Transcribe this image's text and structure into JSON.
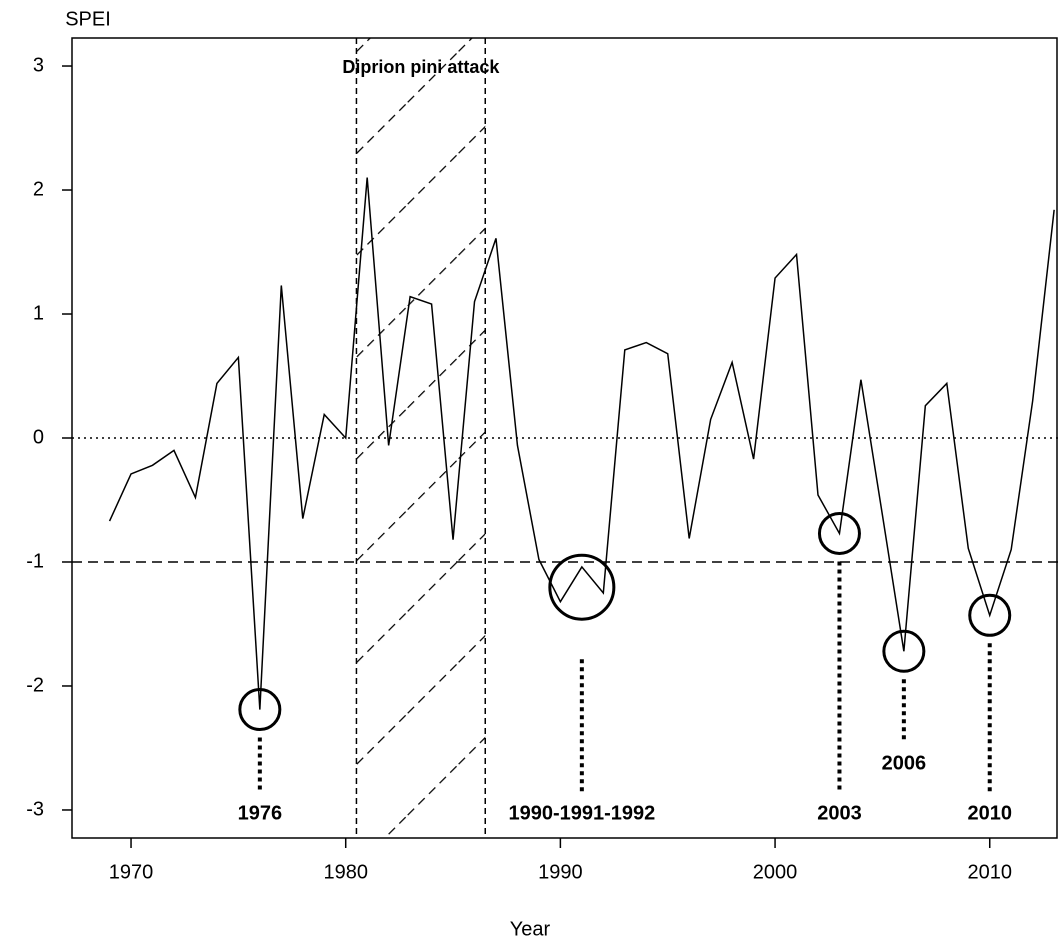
{
  "chart_data": {
    "type": "line",
    "y_label": "SPEI",
    "x_label": "Year",
    "x": [
      1969,
      1970,
      1971,
      1972,
      1973,
      1974,
      1975,
      1976,
      1977,
      1978,
      1979,
      1980,
      1981,
      1982,
      1983,
      1984,
      1985,
      1986,
      1987,
      1988,
      1989,
      1990,
      1991,
      1992,
      1993,
      1994,
      1995,
      1996,
      1997,
      1998,
      1999,
      2000,
      2001,
      2002,
      2003,
      2004,
      2005,
      2006,
      2007,
      2008,
      2009,
      2010,
      2011,
      2012,
      2013
    ],
    "values": [
      -0.67,
      -0.29,
      -0.22,
      -0.1,
      -0.48,
      0.44,
      0.65,
      -2.19,
      1.23,
      -0.65,
      0.19,
      0.0,
      2.1,
      -0.06,
      1.14,
      1.08,
      -0.82,
      1.1,
      1.61,
      -0.06,
      -0.98,
      -1.32,
      -1.04,
      -1.25,
      0.71,
      0.77,
      0.68,
      -0.81,
      0.15,
      0.61,
      -0.17,
      1.29,
      1.48,
      -0.46,
      -0.77,
      0.47,
      -0.62,
      -1.72,
      0.26,
      0.44,
      -0.89,
      -1.43,
      -0.9,
      0.3,
      1.84
    ],
    "color": "#000000",
    "xlim": [
      1967.25,
      2013.18
    ],
    "ylim": [
      -3.226,
      3.226
    ],
    "xticks": [
      1970,
      1980,
      1990,
      2000,
      2010
    ],
    "yticks": [
      -3,
      -2,
      -1,
      0,
      1,
      2,
      3
    ],
    "reference_lines": [
      {
        "y": 0,
        "style": "dotted"
      },
      {
        "y": -1,
        "style": "dashed"
      }
    ],
    "region": {
      "label": "Diprion pini attack",
      "xrange": [
        1980.5,
        1986.5
      ]
    },
    "annotations": [
      {
        "text": "1976",
        "years": [
          1976
        ]
      },
      {
        "text": "1990-1991-1992",
        "years": [
          1990,
          1991,
          1992
        ]
      },
      {
        "text": "2003",
        "years": [
          2003
        ]
      },
      {
        "text": "2006",
        "years": [
          2006
        ]
      },
      {
        "text": "2010",
        "years": [
          2010
        ]
      }
    ]
  }
}
